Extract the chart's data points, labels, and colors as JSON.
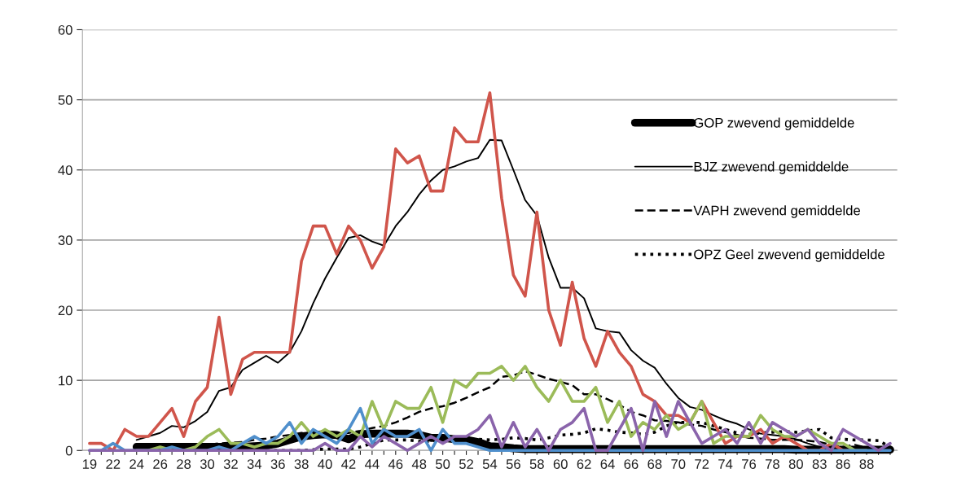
{
  "chart_data": {
    "type": "line",
    "categories": [
      "19",
      null,
      "22",
      null,
      "24",
      null,
      "26",
      null,
      "28",
      null,
      "30",
      null,
      "32",
      null,
      "34",
      null,
      "36",
      null,
      "38",
      null,
      "40",
      null,
      "42",
      null,
      "44",
      null,
      "46",
      null,
      "48",
      null,
      "50",
      null,
      "52",
      null,
      "54",
      null,
      "56",
      null,
      "58",
      null,
      "60",
      null,
      "62",
      null,
      "64",
      null,
      "66",
      null,
      "68",
      null,
      "70",
      null,
      "72",
      null,
      "74",
      null,
      "76",
      null,
      "78",
      null,
      "80",
      null,
      "83",
      null,
      "86",
      null,
      "88",
      null,
      null
    ],
    "ylim": [
      0,
      60
    ],
    "yticks": [
      0,
      10,
      20,
      30,
      40,
      50,
      60
    ],
    "grid": "y",
    "legend": "top right",
    "series": [
      {
        "color": "#d0554b",
        "line_style": "solid",
        "values": [
          1,
          1,
          0,
          3,
          2,
          2,
          4,
          6,
          2,
          7,
          9,
          19,
          8,
          13,
          14,
          14,
          14,
          14,
          27,
          32,
          32,
          28,
          32,
          30,
          26,
          29,
          43,
          41,
          42,
          37,
          37,
          46,
          44,
          44,
          51,
          36,
          25,
          22,
          34,
          20,
          15,
          24,
          16,
          12,
          17,
          14,
          12,
          8,
          7,
          5,
          5,
          4,
          7,
          4,
          1,
          2,
          2,
          3,
          1,
          2,
          1,
          0,
          0,
          1,
          0,
          0,
          null,
          null,
          null
        ]
      },
      {
        "color": "#9bbb59",
        "line_style": "solid",
        "values": [
          null,
          null,
          null,
          null,
          0,
          0,
          0.5,
          0,
          0,
          0.5,
          2,
          3,
          1,
          1,
          0.5,
          1,
          1,
          2,
          4,
          2,
          3,
          2,
          3,
          2,
          7,
          3,
          7,
          6,
          6,
          9,
          4,
          10,
          9,
          11,
          11,
          12,
          10,
          12,
          9,
          7,
          10,
          7,
          7,
          9,
          4,
          7,
          2,
          4,
          3,
          5,
          3,
          4,
          7,
          1,
          2,
          2,
          2,
          5,
          3,
          2,
          2,
          3,
          2,
          1,
          1,
          0,
          0,
          null,
          null
        ]
      },
      {
        "color": "#4f8fcc",
        "line_style": "solid",
        "values": [
          0,
          0,
          1,
          0,
          0,
          0,
          0,
          0.5,
          0,
          0,
          0,
          0.5,
          0,
          1,
          2,
          1,
          2,
          4,
          1,
          3,
          2,
          1,
          3,
          6,
          1,
          3,
          2,
          2,
          3,
          0,
          3,
          1,
          1,
          0.5,
          0,
          0,
          0,
          0,
          0,
          0,
          0,
          0,
          0,
          0,
          0,
          0,
          0,
          0,
          0,
          0,
          0,
          0,
          0,
          0,
          0,
          0,
          0,
          0,
          0,
          0,
          0,
          0,
          0,
          0,
          0,
          0,
          0,
          0,
          0
        ]
      },
      {
        "color": "#8a64ab",
        "line_style": "solid",
        "values": [
          0,
          0,
          0,
          0,
          0,
          0,
          0,
          0,
          0,
          0,
          0,
          0,
          0,
          0,
          0,
          0,
          0,
          0,
          0,
          0,
          1,
          0,
          0,
          2,
          0.5,
          2,
          1,
          0,
          1,
          2,
          1,
          2,
          2,
          3,
          5,
          0.5,
          4,
          0.5,
          3,
          0,
          3,
          4,
          6,
          0,
          0,
          3,
          6,
          0,
          7,
          2,
          7,
          4,
          1,
          2,
          3,
          1,
          4,
          1,
          4,
          3,
          2,
          3,
          1,
          0,
          3,
          2,
          1,
          0,
          1
        ]
      },
      {
        "name": "GOP zwevend gemiddelde",
        "color": "#000000",
        "line_style": "solid",
        "values": [
          null,
          null,
          null,
          null,
          0.5,
          0.5,
          0.5,
          0.5,
          0.5,
          0.5,
          0.5,
          0.5,
          0.5,
          0.5,
          0.6,
          0.7,
          1,
          1.5,
          2,
          2.2,
          2.3,
          2.2,
          1.6,
          2.3,
          2.4,
          2.4,
          2.4,
          2.4,
          2.2,
          1.8,
          1.8,
          1.6,
          1.5,
          1.2,
          0.6,
          0.5,
          0.3,
          0.2,
          0.2,
          0.2,
          0.2,
          0.2,
          0.2,
          0.2,
          0.2,
          0.2,
          0.2,
          0.2,
          0.2,
          0.2,
          0.2,
          0.2,
          0.2,
          0.2,
          0.2,
          0.2,
          0.2,
          0.2,
          0.2,
          0.2,
          0.1,
          0.1,
          0.1,
          0.1,
          0.1,
          0.1,
          0.1,
          0.1,
          0.1
        ]
      },
      {
        "name": "BJZ zwevend gemiddelde",
        "color": "#000000",
        "line_style": "solid",
        "values": [
          null,
          null,
          null,
          null,
          1.5,
          2,
          2.5,
          3.5,
          3.3,
          4.2,
          5.5,
          8.5,
          9,
          11.5,
          12.5,
          13.5,
          12.5,
          14,
          17,
          21,
          24.5,
          27.5,
          30.3,
          30.7,
          29.8,
          29.2,
          32,
          34,
          36.5,
          38.5,
          40,
          40.5,
          41.2,
          41.7,
          44.3,
          44.2,
          40,
          35.7,
          33.5,
          27.5,
          23.2,
          23.2,
          21.7,
          17.4,
          17,
          16.8,
          14.3,
          12.8,
          11.8,
          9.5,
          7.5,
          6.2,
          5.8,
          5,
          4.3,
          3.8,
          3,
          2.4,
          2.2,
          2,
          1.6,
          1,
          0.5,
          0.3,
          0.2,
          0.1,
          0,
          0,
          0
        ]
      },
      {
        "name": "VAPH zwevend gemiddelde",
        "color": "#000000",
        "line_style": "dashed",
        "values": [
          null,
          null,
          null,
          null,
          0.3,
          0.4,
          0.5,
          0.5,
          0.6,
          0.7,
          0.8,
          1,
          1.1,
          1.2,
          1.5,
          1.7,
          2,
          2.2,
          2.5,
          2.5,
          2.5,
          2.5,
          2.5,
          2.8,
          3.2,
          3.5,
          4,
          4.7,
          5.5,
          6,
          6.3,
          6.8,
          7.5,
          8.3,
          9,
          10.5,
          10.7,
          11.3,
          10.8,
          10.2,
          9.8,
          9.3,
          8,
          8,
          7.3,
          6.5,
          5.5,
          5,
          4.3,
          4.2,
          4,
          3.7,
          3.5,
          3,
          2.6,
          2.2,
          1.8,
          1.7,
          1.5,
          1.5,
          1.5,
          1.4,
          1.2,
          0.8,
          0.5,
          0.8,
          0.4,
          0.3,
          0.2
        ]
      },
      {
        "name": "OPZ Geel zwevend gemiddelde",
        "color": "#000000",
        "line_style": "dotted",
        "values": [
          null,
          null,
          null,
          null,
          0,
          0,
          0,
          0,
          0,
          0,
          0,
          0,
          0,
          0,
          0,
          0,
          0,
          0,
          0,
          0.1,
          0.2,
          0.2,
          0.2,
          0.5,
          1,
          1.5,
          1.5,
          1.5,
          1.3,
          1.3,
          1.6,
          1.7,
          1.6,
          1.6,
          1.5,
          1.6,
          1.8,
          1.7,
          1.5,
          1.8,
          2.2,
          2.3,
          2.5,
          3.1,
          2.9,
          2.6,
          2.5,
          2.3,
          2.6,
          3.5,
          4,
          4,
          4,
          3.5,
          3,
          2.5,
          2.3,
          2.5,
          2.6,
          2.7,
          2.6,
          2.8,
          3,
          1.8,
          1.6,
          1.5,
          1.5,
          1.4,
          0.5
        ]
      }
    ]
  }
}
